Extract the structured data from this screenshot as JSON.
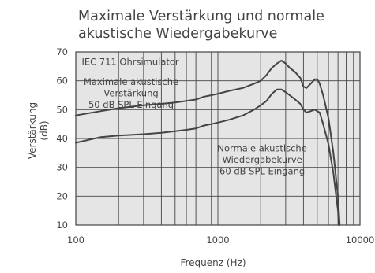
{
  "chart_data": {
    "type": "line",
    "title": "Maximale Verstärkung und normale akustische Wiedergabekurve",
    "title_lines": [
      "Maximale Verstärkung und normale",
      "akustische Wiedergabekurve"
    ],
    "xlabel": "Frequenz (Hz)",
    "ylabel": "Verstärkung",
    "ylabel_unit": "(dB)",
    "x_scale": "log",
    "xlim": [
      100,
      10000
    ],
    "ylim": [
      10,
      70
    ],
    "x_ticks": [
      100,
      1000,
      10000
    ],
    "x_tick_labels": [
      "100",
      "1000",
      "10000"
    ],
    "y_ticks": [
      10,
      20,
      30,
      40,
      50,
      60,
      70
    ],
    "y_tick_labels": [
      "10",
      "20",
      "30",
      "40",
      "50",
      "60",
      "70"
    ],
    "grid": true,
    "annotations": [
      {
        "lines": [
          "IEC 711 Ohrsimulator"
        ],
        "x": 110,
        "y": 65.5,
        "anchor": "start"
      },
      {
        "lines": [
          "Maximale akustische",
          "Verstärkung",
          "50 dB SPL Eingang"
        ],
        "x": 245,
        "y": 58.5,
        "anchor": "middle"
      },
      {
        "lines": [
          "Normale akustische",
          "Wiedergabekurve",
          "60 dB SPL Eingang"
        ],
        "x": 2050,
        "y": 35.5,
        "anchor": "middle"
      }
    ],
    "series": [
      {
        "color": "#444444",
        "x": [
          100,
          150,
          200,
          300,
          400,
          500,
          600,
          700,
          800,
          900,
          1000,
          1200,
          1500,
          1800,
          2000,
          2200,
          2400,
          2600,
          2800,
          3000,
          3200,
          3500,
          3800,
          4000,
          4200,
          4500,
          4800,
          5000,
          5200,
          5500,
          6000,
          6500,
          7000,
          7200
        ],
        "values": [
          48,
          49.5,
          50.5,
          51.5,
          52,
          52.5,
          53,
          53.5,
          54.5,
          55,
          55.5,
          56.5,
          57.5,
          59,
          60,
          62,
          64.5,
          66,
          67,
          66,
          64.5,
          63,
          61,
          58,
          57.5,
          59,
          60.5,
          60.5,
          59,
          55,
          47,
          35,
          20,
          10
        ]
      },
      {
        "color": "#444444",
        "x": [
          100,
          150,
          200,
          300,
          400,
          500,
          600,
          700,
          800,
          900,
          1000,
          1200,
          1500,
          1800,
          2000,
          2200,
          2400,
          2600,
          2800,
          3000,
          3200,
          3500,
          3800,
          4000,
          4200,
          4500,
          4800,
          5000,
          5200,
          5500,
          6000,
          6500,
          7000,
          7100
        ],
        "values": [
          38.5,
          40.5,
          41,
          41.5,
          42,
          42.5,
          43,
          43.5,
          44.5,
          45,
          45.5,
          46.5,
          48,
          50,
          51.5,
          53,
          55.5,
          57,
          57,
          56,
          55,
          53.5,
          52,
          50,
          49,
          49.5,
          50,
          49.5,
          49,
          45,
          38,
          28,
          15,
          10
        ]
      }
    ]
  }
}
